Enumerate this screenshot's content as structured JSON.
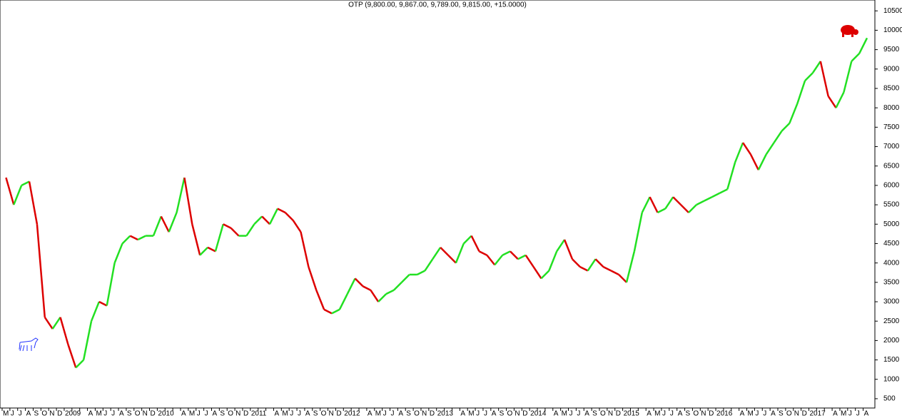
{
  "chart_data": {
    "type": "line",
    "title": "OTP (9,800.00, 9,867.00, 9,789.00, 9,815.00, +15.0000)",
    "categories": [
      "M",
      "J",
      "J",
      "A",
      "S",
      "O",
      "N",
      "D",
      "2009",
      null,
      null,
      "A",
      "M",
      "J",
      "J",
      "A",
      "S",
      "O",
      "N",
      "D",
      "2010",
      null,
      null,
      "A",
      "M",
      "J",
      "J",
      "A",
      "S",
      "O",
      "N",
      "D",
      "2011",
      null,
      null,
      "A",
      "M",
      "J",
      "J",
      "A",
      "S",
      "O",
      "N",
      "D",
      "2012",
      null,
      null,
      "A",
      "M",
      "J",
      "J",
      "A",
      "S",
      "O",
      "N",
      "D",
      "2013",
      null,
      null,
      "A",
      "M",
      "J",
      "J",
      "A",
      "S",
      "O",
      "N",
      "D",
      "2014",
      null,
      null,
      "A",
      "M",
      "J",
      "J",
      "A",
      "S",
      "O",
      "N",
      "D",
      "2015",
      null,
      null,
      "A",
      "M",
      "J",
      "J",
      "A",
      "S",
      "O",
      "N",
      "D",
      "2016",
      null,
      null,
      "A",
      "M",
      "J",
      "J",
      "A",
      "S",
      "O",
      "N",
      "D",
      "2017",
      null,
      null,
      "A",
      "M",
      "J",
      "J",
      "A"
    ],
    "values": [
      6200,
      5500,
      6000,
      6100,
      5000,
      2600,
      2300,
      2600,
      1900,
      1300,
      1500,
      2500,
      3000,
      2900,
      4000,
      4500,
      4700,
      4600,
      4700,
      4700,
      5200,
      4800,
      5300,
      6200,
      5000,
      4200,
      4400,
      4300,
      5000,
      4900,
      4700,
      4700,
      5000,
      5200,
      5000,
      5400,
      5300,
      5100,
      4800,
      3900,
      3300,
      2800,
      2700,
      2800,
      3200,
      3600,
      3400,
      3300,
      3000,
      3200,
      3300,
      3500,
      3700,
      3700,
      3800,
      4100,
      4400,
      4200,
      4000,
      4500,
      4700,
      4300,
      4200,
      3950,
      4200,
      4300,
      4100,
      4200,
      3900,
      3600,
      3800,
      4300,
      4600,
      4100,
      3900,
      3800,
      4100,
      3900,
      3800,
      3700,
      3500,
      4300,
      5300,
      5700,
      5300,
      5400,
      5700,
      5500,
      5300,
      5500,
      5600,
      5700,
      5800,
      5900,
      6600,
      7100,
      6800,
      6400,
      6800,
      7100,
      7400,
      7600,
      8100,
      8700,
      8900,
      9200,
      8300,
      8000,
      8400,
      9200,
      9400,
      9800
    ],
    "up_color": "#22e022",
    "down_color": "#dd0000",
    "ylim": [
      260,
      10780
    ],
    "yticks": [
      500,
      1000,
      1500,
      2000,
      2500,
      3000,
      3500,
      4000,
      4500,
      5000,
      5500,
      6000,
      6500,
      7000,
      7500,
      8000,
      8500,
      9000,
      9500,
      10000,
      10500
    ]
  }
}
